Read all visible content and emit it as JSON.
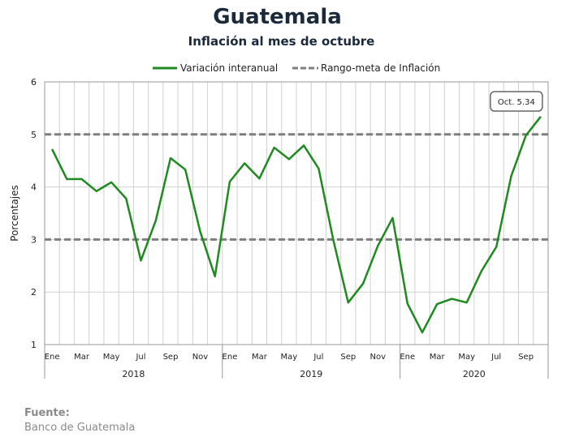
{
  "chart_data": {
    "type": "line",
    "title": "Guatemala",
    "subtitle": "Inflación al mes de octubre",
    "ylabel": "Porcentajes",
    "ylim": [
      1,
      6
    ],
    "yticks": [
      1,
      2,
      3,
      4,
      5,
      6
    ],
    "grid": true,
    "legend_placement": "top-center",
    "x_labels": [
      "Ene",
      "",
      "Mar",
      "",
      "May",
      "",
      "Jul",
      "",
      "Sep",
      "",
      "Nov",
      "",
      "Ene",
      "",
      "Mar",
      "",
      "May",
      "",
      "Jul",
      "",
      "Sep",
      "",
      "Nov",
      "",
      "Ene",
      "",
      "Mar",
      "",
      "May",
      "",
      "Jul",
      "",
      "Sep",
      ""
    ],
    "years": [
      "2018",
      "2019",
      "2020"
    ],
    "series": [
      {
        "name": "Variación interanual",
        "color": "#1f8a1f",
        "style": "solid",
        "values": [
          4.72,
          4.15,
          4.15,
          3.92,
          4.09,
          3.78,
          2.6,
          3.36,
          4.55,
          4.33,
          3.15,
          2.3,
          4.1,
          4.45,
          4.16,
          4.75,
          4.53,
          4.79,
          4.35,
          2.98,
          1.8,
          2.16,
          2.88,
          3.41,
          1.78,
          1.23,
          1.77,
          1.87,
          1.8,
          2.4,
          2.86,
          4.2,
          4.98,
          5.34
        ]
      },
      {
        "name": "Rango-meta de Inflación",
        "color": "#7f7f7f",
        "style": "dashed",
        "bounds": [
          3,
          5
        ]
      }
    ],
    "annotation": {
      "text": "Oct. 5.34",
      "x_index": 33,
      "value": 5.34
    }
  },
  "source": {
    "label": "Fuente:",
    "value": "Banco de Guatemala"
  }
}
